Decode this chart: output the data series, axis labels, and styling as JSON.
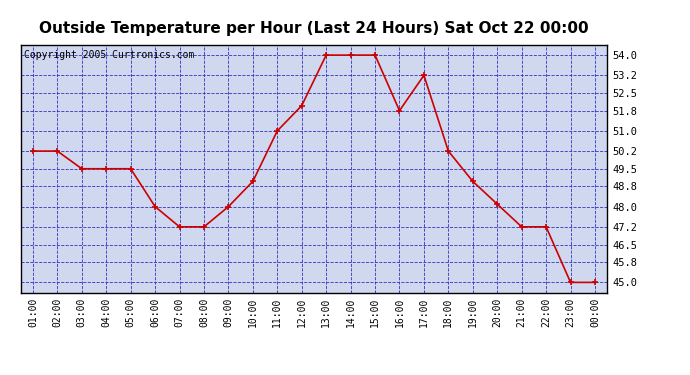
{
  "title": "Outside Temperature per Hour (Last 24 Hours) Sat Oct 22 00:00",
  "copyright": "Copyright 2005 Curtronics.com",
  "hours": [
    "01:00",
    "02:00",
    "03:00",
    "04:00",
    "05:00",
    "06:00",
    "07:00",
    "08:00",
    "09:00",
    "10:00",
    "11:00",
    "12:00",
    "13:00",
    "14:00",
    "15:00",
    "16:00",
    "17:00",
    "18:00",
    "19:00",
    "20:00",
    "21:00",
    "22:00",
    "23:00",
    "00:00"
  ],
  "temps": [
    50.2,
    50.2,
    49.5,
    49.5,
    49.5,
    48.0,
    47.2,
    47.2,
    48.0,
    49.0,
    51.0,
    52.0,
    54.0,
    54.0,
    54.0,
    51.8,
    53.2,
    50.2,
    49.0,
    48.1,
    47.2,
    47.2,
    45.0,
    45.0
  ],
  "ylim_min": 44.6,
  "ylim_max": 54.4,
  "yticks": [
    45.0,
    45.8,
    46.5,
    47.2,
    48.0,
    48.8,
    49.5,
    50.2,
    51.0,
    51.8,
    52.5,
    53.2,
    54.0
  ],
  "line_color": "#cc0000",
  "marker_color": "#cc0000",
  "plot_bg": "#d0d8f0",
  "title_fontsize": 11,
  "copyright_fontsize": 7,
  "grid_color": "#3333bb",
  "border_color": "#000000",
  "fig_facecolor": "#ffffff"
}
